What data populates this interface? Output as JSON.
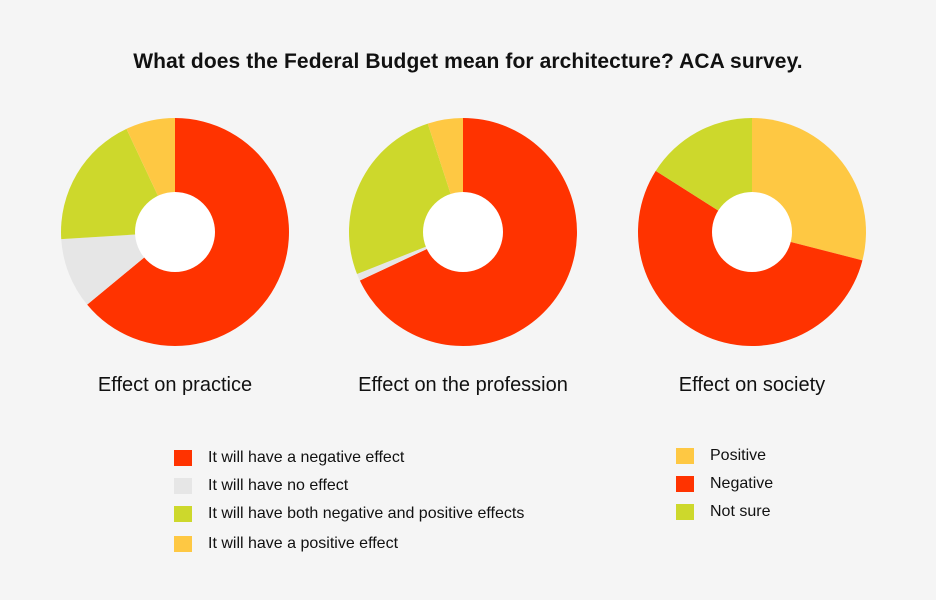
{
  "title": "What does the Federal Budget mean for architecture? ACA survey.",
  "colors": {
    "negative": "#ff3300",
    "none": "#e6e6e6",
    "both": "#cdd82c",
    "positive": "#fec843",
    "background": "#f5f5f5"
  },
  "chart_data": [
    {
      "type": "pie",
      "title": "Effect on practice",
      "categories": [
        "It will have a negative effect",
        "It will have no effect",
        "It will have both negative and positive effects",
        "It will have a positive effect"
      ],
      "values": [
        64,
        10,
        19,
        7
      ],
      "colors": [
        "#ff3300",
        "#e6e6e6",
        "#cdd82c",
        "#fec843"
      ]
    },
    {
      "type": "pie",
      "title": "Effect on the profession",
      "categories": [
        "It will have a negative effect",
        "It will have no effect",
        "It will have both negative and positive effects",
        "It will have a positive effect"
      ],
      "values": [
        68,
        1,
        26,
        5
      ],
      "colors": [
        "#ff3300",
        "#e6e6e6",
        "#cdd82c",
        "#fec843"
      ]
    },
    {
      "type": "pie",
      "title": "Effect on society",
      "categories": [
        "Positive",
        "Negative",
        "Not sure"
      ],
      "values": [
        29,
        55,
        16
      ],
      "colors": [
        "#fec843",
        "#ff3300",
        "#cdd82c"
      ]
    }
  ],
  "legend_left": [
    {
      "label": "It will have a negative effect",
      "color": "#ff3300"
    },
    {
      "label": "It will have no effect",
      "color": "#e6e6e6"
    },
    {
      "label": "It will have both negative and positive effects",
      "color": "#cdd82c"
    },
    {
      "label": "It will have a positive effect",
      "color": "#fec843"
    }
  ],
  "legend_right": [
    {
      "label": "Positive",
      "color": "#fec843"
    },
    {
      "label": "Negative",
      "color": "#ff3300"
    },
    {
      "label": "Not sure",
      "color": "#cdd82c"
    }
  ]
}
